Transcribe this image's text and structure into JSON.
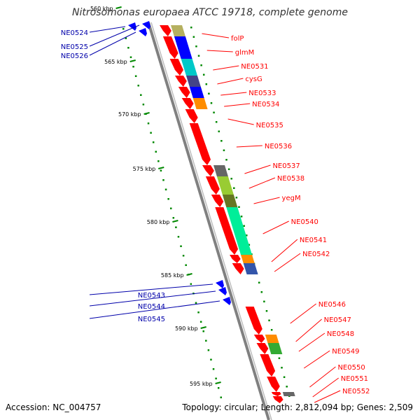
{
  "title": "Nitrosomonas europaea ATCC 19718, complete genome",
  "accession": "Accession: NC_004757",
  "summary": "Topology: circular; Length: 2,812,094 bp; Genes: 2,509",
  "colors": {
    "forward_label": "#ff0000",
    "reverse_label": "#0000aa",
    "forward_gene": "#ff0000",
    "reverse_gene": "#0000ff",
    "backbone": "#808080",
    "ruler_dots": "#008800"
  },
  "ruler_ticks": [
    "560 kbp",
    "565 kbp",
    "570 kbp",
    "575 kbp",
    "580 kbp",
    "585 kbp",
    "590 kbp",
    "595 kbp"
  ],
  "forward_genes": [
    {
      "label": "folP",
      "cog_color": "#b5b060"
    },
    {
      "label": "glmM",
      "cog_color": "#0000ff"
    },
    {
      "label": "NE0531",
      "cog_color": "#00c8c8"
    },
    {
      "label": "cysG",
      "cog_color": "#444488"
    },
    {
      "label": "NE0533",
      "cog_color": "#0000ff"
    },
    {
      "label": "NE0534",
      "cog_color": "#ff8c00"
    },
    {
      "label": "NE0535",
      "cog_color": ""
    },
    {
      "label": "NE0536",
      "cog_color": ""
    },
    {
      "label": "NE0537",
      "cog_color": "#666666"
    },
    {
      "label": "NE0538",
      "cog_color": "#99cc33"
    },
    {
      "label": "yegM",
      "cog_color": "#667722"
    },
    {
      "label": "NE0540",
      "cog_color": "#00ee99"
    },
    {
      "label": "NE0541",
      "cog_color": "#ff8c00"
    },
    {
      "label": "NE0542",
      "cog_color": "#3355aa"
    },
    {
      "label": "NE0546",
      "cog_color": ""
    },
    {
      "label": "NE0547",
      "cog_color": "#ff8c00"
    },
    {
      "label": "NE0548",
      "cog_color": "#33aa33"
    },
    {
      "label": "NE0549",
      "cog_color": ""
    },
    {
      "label": "NE0550",
      "cog_color": ""
    },
    {
      "label": "NE0551",
      "cog_color": "#666666"
    },
    {
      "label": "NE0552",
      "cog_color": ""
    }
  ],
  "reverse_genes": [
    {
      "label": "NE0524"
    },
    {
      "label": "NE0525"
    },
    {
      "label": "NE0526"
    },
    {
      "label": "NE0543"
    },
    {
      "label": "NE0544"
    },
    {
      "label": "NE0545"
    }
  ]
}
